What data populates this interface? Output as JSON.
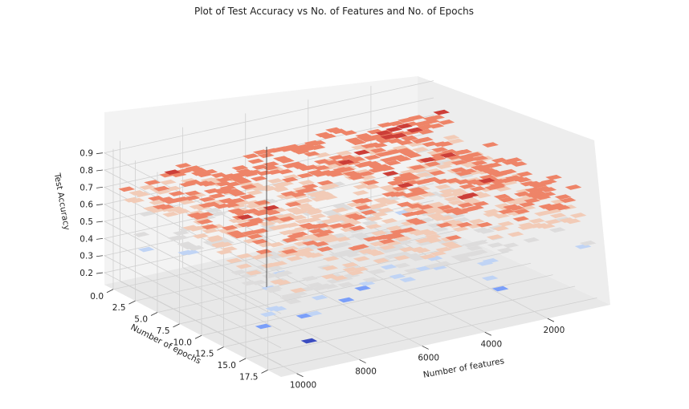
{
  "chart_data": {
    "type": "3d-surface-contour",
    "title": "Plot of Test Accuracy vs No. of Features and No. of Epochs",
    "xlabel": "Number of epochs",
    "ylabel": "Number of features",
    "zlabel": "Test Accuracy",
    "x_ticks": [
      "0.0",
      "2.5",
      "5.0",
      "7.5",
      "10.0",
      "12.5",
      "15.0",
      "17.5"
    ],
    "x_tick_values": [
      0,
      2.5,
      5,
      7.5,
      10,
      12.5,
      15,
      17.5
    ],
    "xlim": [
      -1,
      19
    ],
    "y_ticks": [
      "2000",
      "4000",
      "6000",
      "8000",
      "10000"
    ],
    "y_tick_values": [
      2000,
      4000,
      6000,
      8000,
      10000
    ],
    "ylim": [
      0,
      10500
    ],
    "z_ticks": [
      "0.2",
      "0.3",
      "0.4",
      "0.5",
      "0.6",
      "0.7",
      "0.8",
      "0.9"
    ],
    "z_tick_values": [
      0.2,
      0.3,
      0.4,
      0.5,
      0.6,
      0.7,
      0.8,
      0.9
    ],
    "zlim": [
      0.13,
      0.95
    ],
    "colormap": [
      "#3b4cc0",
      "#7b9ff9",
      "#c0d4f5",
      "#dddcdc",
      "#f2cbb7",
      "#ee8468",
      "#cc3e38"
    ],
    "grid": true,
    "pane_color": "#f2f2f2",
    "notes": "Filled contour surface; accuracy mostly 0.55-0.85 (red/orange) with sparse low values (blue) near high epochs."
  }
}
